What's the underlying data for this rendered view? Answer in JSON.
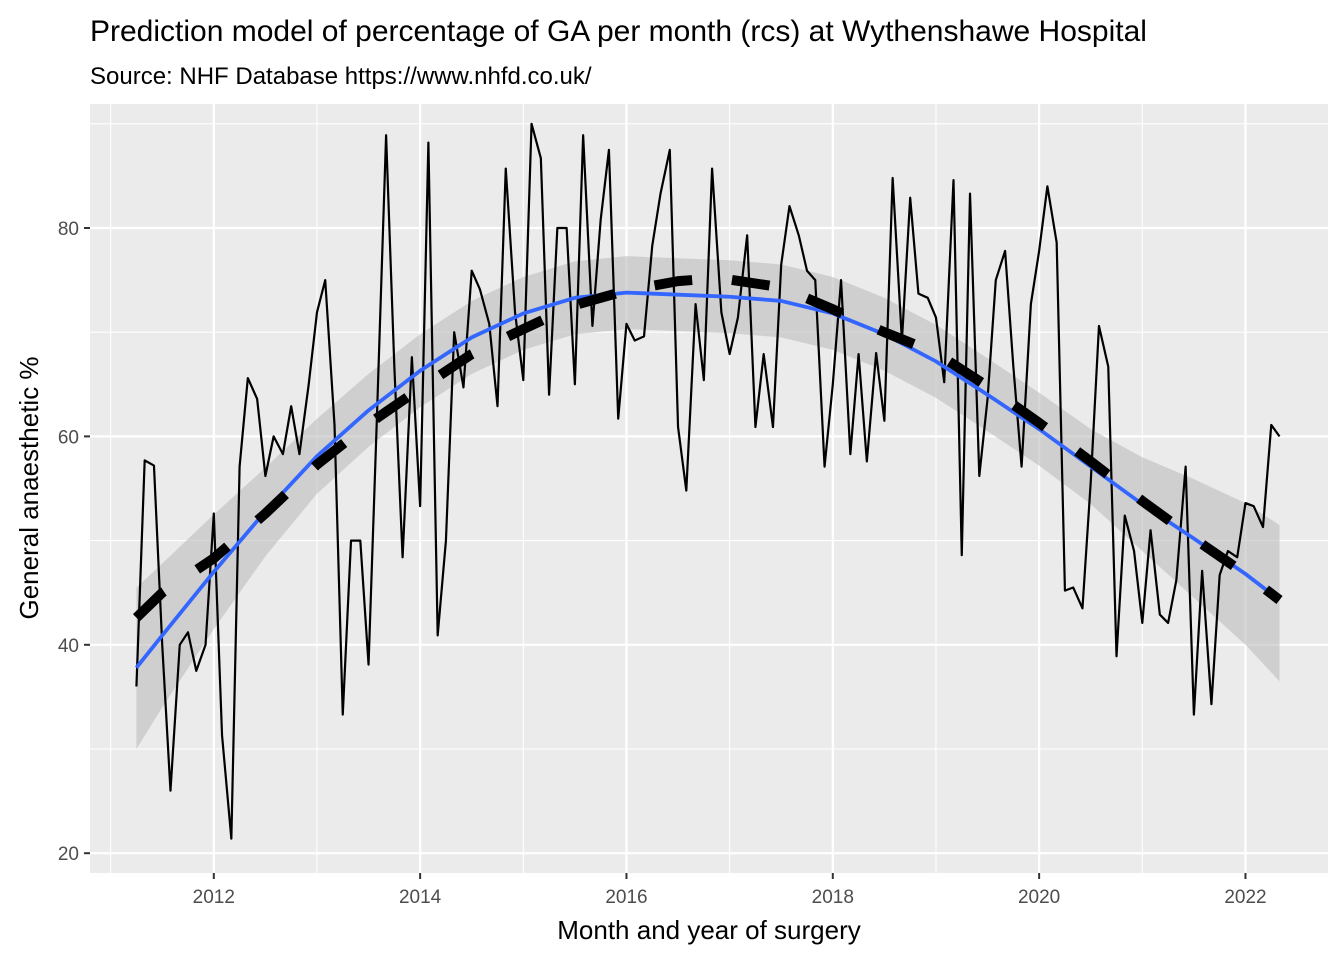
{
  "chart_data": {
    "type": "line",
    "title": "Prediction model of percentage of GA per month (rcs) at Wythenshawe Hospital",
    "subtitle": "Source: NHF Database https://www.nhfd.co.uk/",
    "xlabel": "Month and year of surgery",
    "ylabel": "General anaesthetic %",
    "xlim": [
      2010.8,
      2022.8
    ],
    "ylim": [
      18.1,
      91.9
    ],
    "x_ticks": [
      {
        "value": 2012,
        "label": "2012"
      },
      {
        "value": 2014,
        "label": "2014"
      },
      {
        "value": 2016,
        "label": "2016"
      },
      {
        "value": 2018,
        "label": "2018"
      },
      {
        "value": 2020,
        "label": "2020"
      },
      {
        "value": 2022,
        "label": "2022"
      }
    ],
    "y_ticks": [
      {
        "value": 20,
        "label": "20"
      },
      {
        "value": 40,
        "label": "40"
      },
      {
        "value": 60,
        "label": "60"
      },
      {
        "value": 80,
        "label": "80"
      }
    ],
    "grid": true,
    "legend": "none",
    "colors": {
      "panel": "#ebebeb",
      "grid": "#ffffff",
      "observed": "#000000",
      "smooth": "#3366ff",
      "band": "#bdbdbd",
      "prediction": "#000000"
    },
    "series": [
      {
        "role": "observed",
        "style": "solid",
        "points": [
          [
            2011.25,
            36.0
          ],
          [
            2011.33,
            57.7
          ],
          [
            2011.42,
            57.2
          ],
          [
            2011.5,
            40.0
          ],
          [
            2011.58,
            26.0
          ],
          [
            2011.67,
            40.0
          ],
          [
            2011.75,
            41.2
          ],
          [
            2011.83,
            37.5
          ],
          [
            2011.92,
            40.0
          ],
          [
            2012.0,
            52.6
          ],
          [
            2012.08,
            31.3
          ],
          [
            2012.17,
            21.4
          ],
          [
            2012.25,
            57.1
          ],
          [
            2012.33,
            65.6
          ],
          [
            2012.42,
            63.6
          ],
          [
            2012.5,
            56.2
          ],
          [
            2012.58,
            60.0
          ],
          [
            2012.67,
            58.3
          ],
          [
            2012.75,
            62.9
          ],
          [
            2012.83,
            58.3
          ],
          [
            2012.92,
            65.0
          ],
          [
            2013.0,
            71.9
          ],
          [
            2013.08,
            75.0
          ],
          [
            2013.17,
            61.1
          ],
          [
            2013.25,
            33.3
          ],
          [
            2013.33,
            50.0
          ],
          [
            2013.42,
            50.0
          ],
          [
            2013.5,
            38.1
          ],
          [
            2013.58,
            61.5
          ],
          [
            2013.67,
            88.9
          ],
          [
            2013.75,
            66.7
          ],
          [
            2013.83,
            48.4
          ],
          [
            2013.92,
            67.6
          ],
          [
            2014.0,
            53.3
          ],
          [
            2014.08,
            88.2
          ],
          [
            2014.17,
            40.9
          ],
          [
            2014.25,
            50.0
          ],
          [
            2014.33,
            70.0
          ],
          [
            2014.42,
            64.7
          ],
          [
            2014.5,
            75.9
          ],
          [
            2014.58,
            74.1
          ],
          [
            2014.67,
            70.8
          ],
          [
            2014.75,
            62.9
          ],
          [
            2014.83,
            85.7
          ],
          [
            2014.92,
            71.9
          ],
          [
            2015.0,
            65.4
          ],
          [
            2015.08,
            90.0
          ],
          [
            2015.17,
            86.7
          ],
          [
            2015.25,
            64.0
          ],
          [
            2015.33,
            80.0
          ],
          [
            2015.42,
            80.0
          ],
          [
            2015.5,
            65.0
          ],
          [
            2015.58,
            88.9
          ],
          [
            2015.67,
            70.6
          ],
          [
            2015.75,
            80.8
          ],
          [
            2015.83,
            87.5
          ],
          [
            2015.92,
            61.7
          ],
          [
            2016.0,
            70.8
          ],
          [
            2016.08,
            69.2
          ],
          [
            2016.17,
            69.6
          ],
          [
            2016.25,
            78.3
          ],
          [
            2016.33,
            83.3
          ],
          [
            2016.42,
            87.5
          ],
          [
            2016.5,
            60.9
          ],
          [
            2016.58,
            54.8
          ],
          [
            2016.67,
            72.7
          ],
          [
            2016.75,
            65.4
          ],
          [
            2016.83,
            85.7
          ],
          [
            2016.92,
            71.9
          ],
          [
            2017.0,
            67.9
          ],
          [
            2017.08,
            71.4
          ],
          [
            2017.17,
            79.3
          ],
          [
            2017.25,
            60.9
          ],
          [
            2017.33,
            67.9
          ],
          [
            2017.42,
            60.9
          ],
          [
            2017.5,
            76.5
          ],
          [
            2017.58,
            82.1
          ],
          [
            2017.67,
            79.3
          ],
          [
            2017.75,
            75.9
          ],
          [
            2017.83,
            75.0
          ],
          [
            2017.92,
            57.1
          ],
          [
            2018.0,
            65.0
          ],
          [
            2018.08,
            75.0
          ],
          [
            2018.17,
            58.3
          ],
          [
            2018.25,
            67.9
          ],
          [
            2018.33,
            57.6
          ],
          [
            2018.42,
            68.0
          ],
          [
            2018.5,
            61.5
          ],
          [
            2018.58,
            84.8
          ],
          [
            2018.67,
            69.2
          ],
          [
            2018.75,
            82.9
          ],
          [
            2018.83,
            73.7
          ],
          [
            2018.92,
            73.3
          ],
          [
            2019.0,
            71.4
          ],
          [
            2019.08,
            65.2
          ],
          [
            2019.17,
            84.6
          ],
          [
            2019.25,
            48.6
          ],
          [
            2019.33,
            83.3
          ],
          [
            2019.42,
            56.2
          ],
          [
            2019.5,
            63.6
          ],
          [
            2019.58,
            75.0
          ],
          [
            2019.67,
            77.8
          ],
          [
            2019.75,
            66.7
          ],
          [
            2019.83,
            57.1
          ],
          [
            2019.92,
            72.7
          ],
          [
            2020.0,
            77.8
          ],
          [
            2020.08,
            84.0
          ],
          [
            2020.17,
            78.6
          ],
          [
            2020.25,
            45.2
          ],
          [
            2020.33,
            45.5
          ],
          [
            2020.42,
            43.5
          ],
          [
            2020.5,
            55.6
          ],
          [
            2020.58,
            70.6
          ],
          [
            2020.67,
            66.7
          ],
          [
            2020.75,
            38.9
          ],
          [
            2020.83,
            52.4
          ],
          [
            2020.92,
            49.0
          ],
          [
            2021.0,
            42.1
          ],
          [
            2021.08,
            51.0
          ],
          [
            2021.17,
            42.9
          ],
          [
            2021.25,
            42.1
          ],
          [
            2021.33,
            46.2
          ],
          [
            2021.42,
            57.1
          ],
          [
            2021.5,
            33.3
          ],
          [
            2021.58,
            47.1
          ],
          [
            2021.67,
            34.3
          ],
          [
            2021.75,
            46.7
          ],
          [
            2021.83,
            49.0
          ],
          [
            2021.92,
            48.4
          ],
          [
            2022.0,
            53.6
          ],
          [
            2022.08,
            53.3
          ],
          [
            2022.17,
            51.3
          ],
          [
            2022.25,
            61.1
          ],
          [
            2022.33,
            60.0
          ]
        ]
      },
      {
        "role": "smooth",
        "style": "solid",
        "points": [
          [
            2011.25,
            37.8
          ],
          [
            2011.5,
            40.9
          ],
          [
            2012.0,
            47.0
          ],
          [
            2012.5,
            52.8
          ],
          [
            2013.0,
            58.1
          ],
          [
            2013.5,
            62.5
          ],
          [
            2014.0,
            66.3
          ],
          [
            2014.5,
            69.5
          ],
          [
            2015.0,
            71.8
          ],
          [
            2015.5,
            73.3
          ],
          [
            2016.0,
            73.8
          ],
          [
            2016.5,
            73.6
          ],
          [
            2017.0,
            73.4
          ],
          [
            2017.5,
            73.0
          ],
          [
            2018.0,
            71.8
          ],
          [
            2018.5,
            69.8
          ],
          [
            2019.0,
            67.2
          ],
          [
            2019.5,
            64.0
          ],
          [
            2020.0,
            60.7
          ],
          [
            2020.5,
            57.1
          ],
          [
            2021.0,
            53.5
          ],
          [
            2021.5,
            50.2
          ],
          [
            2022.0,
            46.8
          ],
          [
            2022.33,
            44.3
          ]
        ],
        "lower": [
          [
            2011.25,
            30.0
          ],
          [
            2011.5,
            34.0
          ],
          [
            2012.0,
            41.5
          ],
          [
            2012.5,
            48.5
          ],
          [
            2013.0,
            54.5
          ],
          [
            2013.5,
            59.0
          ],
          [
            2014.0,
            62.8
          ],
          [
            2014.5,
            66.0
          ],
          [
            2015.0,
            68.3
          ],
          [
            2015.5,
            69.8
          ],
          [
            2016.0,
            70.3
          ],
          [
            2016.5,
            70.1
          ],
          [
            2017.0,
            69.9
          ],
          [
            2017.5,
            69.5
          ],
          [
            2018.0,
            68.3
          ],
          [
            2018.5,
            66.3
          ],
          [
            2019.0,
            63.7
          ],
          [
            2019.5,
            60.5
          ],
          [
            2020.0,
            57.2
          ],
          [
            2020.5,
            53.5
          ],
          [
            2021.0,
            49.0
          ],
          [
            2021.5,
            44.5
          ],
          [
            2022.0,
            40.0
          ],
          [
            2022.33,
            36.5
          ]
        ],
        "upper": [
          [
            2011.25,
            45.5
          ],
          [
            2011.5,
            47.8
          ],
          [
            2012.0,
            52.5
          ],
          [
            2012.5,
            57.0
          ],
          [
            2013.0,
            61.7
          ],
          [
            2013.5,
            66.0
          ],
          [
            2014.0,
            69.8
          ],
          [
            2014.5,
            73.0
          ],
          [
            2015.0,
            75.3
          ],
          [
            2015.5,
            76.8
          ],
          [
            2016.0,
            77.3
          ],
          [
            2016.5,
            77.1
          ],
          [
            2017.0,
            76.9
          ],
          [
            2017.5,
            76.5
          ],
          [
            2018.0,
            75.3
          ],
          [
            2018.5,
            73.3
          ],
          [
            2019.0,
            70.7
          ],
          [
            2019.5,
            67.5
          ],
          [
            2020.0,
            64.2
          ],
          [
            2020.5,
            60.7
          ],
          [
            2021.0,
            58.0
          ],
          [
            2021.5,
            55.9
          ],
          [
            2022.0,
            53.6
          ],
          [
            2022.33,
            51.5
          ]
        ]
      },
      {
        "role": "prediction",
        "style": "dashed",
        "points": [
          [
            2011.25,
            42.6
          ],
          [
            2011.5,
            45.0
          ],
          [
            2012.0,
            48.3
          ],
          [
            2012.5,
            52.6
          ],
          [
            2013.0,
            57.3
          ],
          [
            2013.5,
            61.2
          ],
          [
            2014.0,
            64.6
          ],
          [
            2014.5,
            67.9
          ],
          [
            2015.0,
            70.3
          ],
          [
            2015.5,
            72.6
          ],
          [
            2016.0,
            74.0
          ],
          [
            2016.5,
            74.9
          ],
          [
            2016.9,
            75.2
          ],
          [
            2017.5,
            74.3
          ],
          [
            2018.0,
            72.2
          ],
          [
            2018.5,
            70.0
          ],
          [
            2019.0,
            68.0
          ],
          [
            2019.5,
            64.8
          ],
          [
            2020.0,
            61.3
          ],
          [
            2020.5,
            57.6
          ],
          [
            2021.0,
            53.8
          ],
          [
            2021.5,
            50.2
          ],
          [
            2022.0,
            46.8
          ],
          [
            2022.33,
            44.3
          ]
        ]
      }
    ]
  }
}
